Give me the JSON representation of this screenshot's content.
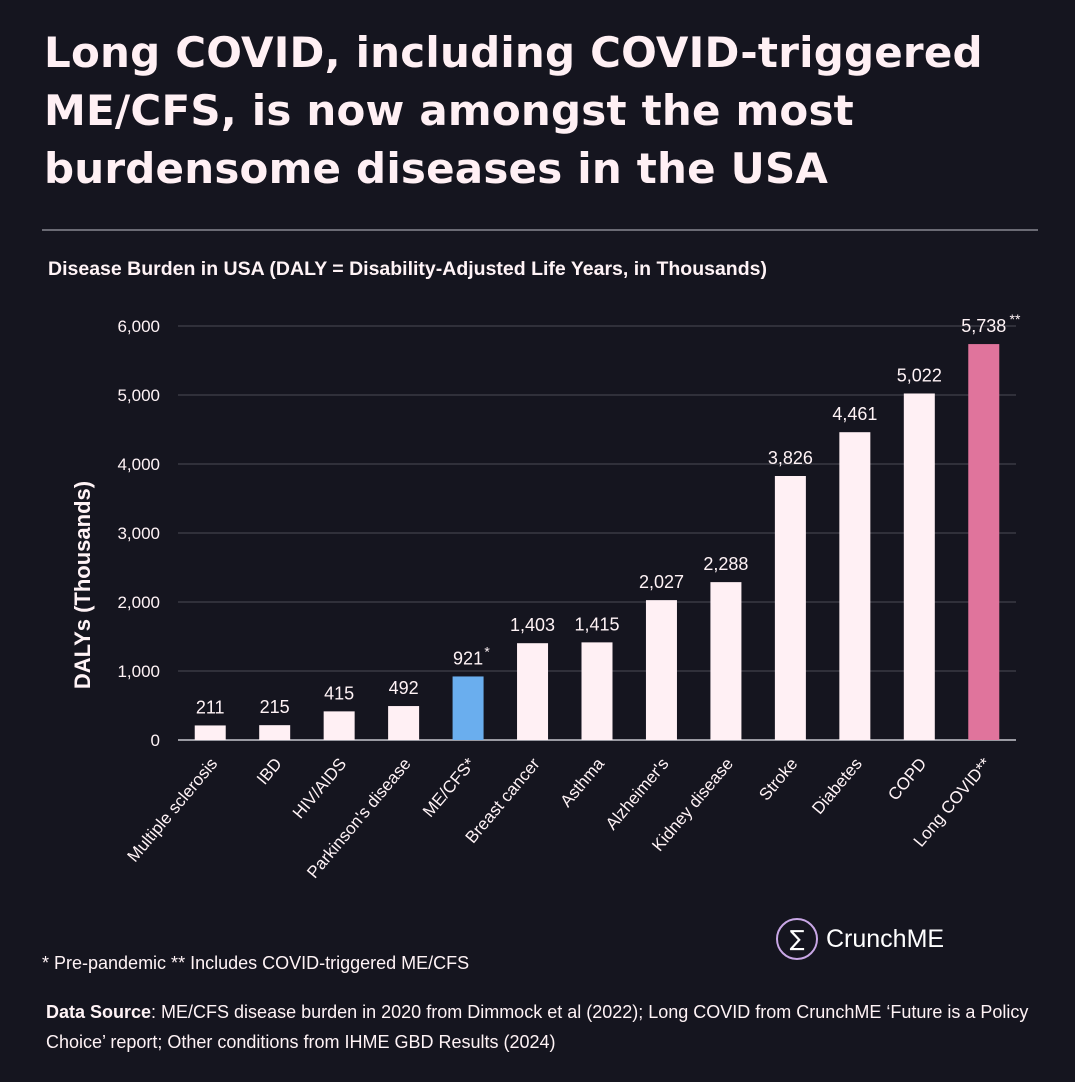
{
  "title_lines": [
    "Long COVID, including COVID-triggered",
    "ME/CFS, is now amongst the most",
    "burdensome diseases in the USA"
  ],
  "chart_data": {
    "type": "bar",
    "title": "Disease Burden in USA (DALY = Disability-Adjusted Life Years, in Thousands)",
    "ylabel": "DALYs (Thousands)",
    "xlabel": "",
    "ylim": [
      0,
      6000
    ],
    "yticks": [
      0,
      1000,
      2000,
      3000,
      4000,
      5000,
      6000
    ],
    "ytick_labels": [
      "0",
      "1,000",
      "2,000",
      "3,000",
      "4,000",
      "5,000",
      "6,000"
    ],
    "grid": true,
    "categories": [
      "Multiple sclerosis",
      "IBD",
      "HIV/AIDS",
      "Parkinson's disease",
      "ME/CFS*",
      "Breast cancer",
      "Asthma",
      "Alzheimer's",
      "Kidney disease",
      "Stroke",
      "Diabetes",
      "COPD",
      "Long COVID**"
    ],
    "values": [
      211,
      215,
      415,
      492,
      921,
      1403,
      1415,
      2027,
      2288,
      3826,
      4461,
      5022,
      5738
    ],
    "value_labels": [
      "211",
      "215",
      "415",
      "492",
      "921",
      "1,403",
      "1,415",
      "2,027",
      "2,288",
      "3,826",
      "4,461",
      "5,022",
      "5,738"
    ],
    "value_label_marks": [
      "",
      "",
      "",
      "",
      "*",
      "",
      "",
      "",
      "",
      "",
      "",
      "",
      "**"
    ],
    "bar_colors": [
      "#fff0f4",
      "#fff0f4",
      "#fff0f4",
      "#fff0f4",
      "#6aaeee",
      "#fff0f4",
      "#fff0f4",
      "#fff0f4",
      "#fff0f4",
      "#fff0f4",
      "#fff0f4",
      "#fff0f4",
      "#e0749c"
    ]
  },
  "footnote": "* Pre-pandemic ** Includes COVID-triggered ME/CFS",
  "source": {
    "label": "Data Source",
    "text": ": ME/CFS disease burden in 2020 from Dimmock et al (2022); Long COVID from CrunchME ‘Future is a Policy Choice’ report; Other conditions from IHME GBD Results (2024)"
  },
  "brand": {
    "icon": "sigma-icon",
    "symbol": "∑",
    "name": "CrunchME"
  },
  "colors": {
    "background": "#15151f",
    "text": "#fff3f6",
    "grid": "#4a4a55",
    "axis": "#9a9aa2"
  }
}
